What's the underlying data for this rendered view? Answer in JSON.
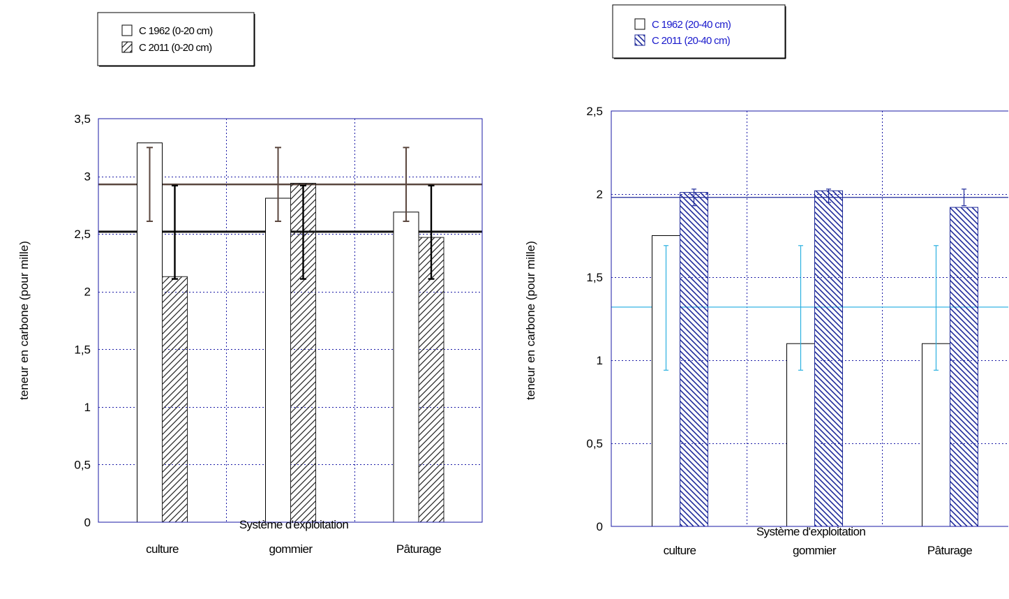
{
  "colors": {
    "frame": "#1a1aa6",
    "grid": "#1a1aa6",
    "left_hatch": "#222222",
    "left_err_1962": "#5a463e",
    "left_err_2011": "#000000",
    "left_ref_1962": "#5a463e",
    "left_ref_2011": "#111111",
    "right_hatch": "#1f2a9a",
    "right_err_1962": "#2bb0e0",
    "right_err_2011": "#1f2a9a",
    "right_ref_1962": "#34b4e4",
    "right_ref_2011": "#1f2a9a",
    "right_legend_text": "#1a1acc"
  },
  "chart_data": [
    {
      "type": "bar",
      "categories": [
        "culture",
        "gommier",
        "Pâturage"
      ],
      "series": [
        {
          "name": "C 1962 (0-20 cm)",
          "values": [
            3.29,
            2.81,
            2.69
          ],
          "error_low": [
            2.61,
            2.61,
            2.61
          ],
          "error_high": [
            3.25,
            3.25,
            3.25
          ],
          "pattern": "none"
        },
        {
          "name": "C 2011 (0-20 cm)",
          "values": [
            2.13,
            2.94,
            2.47
          ],
          "error_low": [
            2.11,
            2.11,
            2.11
          ],
          "error_high": [
            2.92,
            2.92,
            2.92
          ],
          "pattern": "hatch-forward"
        }
      ],
      "reference_lines": [
        {
          "value": 2.93,
          "series": "C 1962 (0-20 cm)"
        },
        {
          "value": 2.52,
          "series": "C 2011 (0-20 cm)"
        }
      ],
      "yticks": [
        "0",
        "0,5",
        "1",
        "1,5",
        "2",
        "2,5",
        "3",
        "3,5"
      ],
      "ylim": [
        0,
        3.5
      ],
      "ylabel": "teneur en carbone (pour mille)",
      "xlabel": "Système d'exploitation",
      "grid": true,
      "legend_position": "top-left"
    },
    {
      "type": "bar",
      "categories": [
        "culture",
        "gommier",
        "Pâturage"
      ],
      "series": [
        {
          "name": "C 1962 (20-40 cm)",
          "values": [
            1.75,
            1.1,
            1.1
          ],
          "error_low": [
            0.94,
            0.94,
            0.94
          ],
          "error_high": [
            1.69,
            1.69,
            1.69
          ],
          "pattern": "none"
        },
        {
          "name": "C 2011 (20-40 cm)",
          "values": [
            2.01,
            2.02,
            1.92
          ],
          "error_low": [
            1.93,
            1.95,
            1.93
          ],
          "error_high": [
            2.03,
            2.03,
            2.03
          ],
          "pattern": "hatch-backward"
        }
      ],
      "reference_lines": [
        {
          "value": 1.32,
          "series": "C 1962 (20-40 cm)"
        },
        {
          "value": 1.98,
          "series": "C 2011 (20-40 cm)"
        }
      ],
      "yticks": [
        "0",
        "0,5",
        "1",
        "1,5",
        "2",
        "2,5"
      ],
      "ylim": [
        0,
        2.5
      ],
      "ylabel": "teneur en carbone (pour mille)",
      "xlabel": "Système d'exploitation",
      "grid": true,
      "legend_position": "top-left"
    }
  ]
}
